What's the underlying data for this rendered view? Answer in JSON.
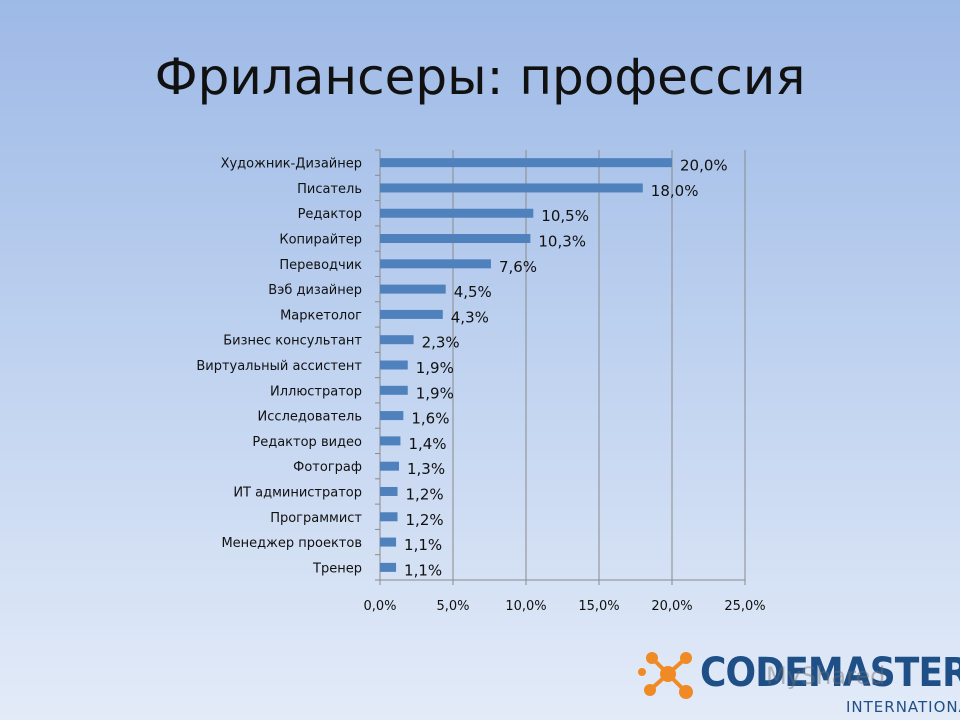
{
  "title": "Фрилансеры: профессия",
  "chart_data": {
    "type": "bar",
    "orientation": "horizontal",
    "categories": [
      "Художник-Дизайнер",
      "Писатель",
      "Редактор",
      "Копирайтер",
      "Переводчик",
      "Вэб дизайнер",
      "Маркетолог",
      "Бизнес консультант",
      "Виртуальный ассистент",
      "Иллюстратор",
      "Исследователь",
      "Редактор видео",
      "Фотограф",
      "ИТ администратор",
      "Программист",
      "Менеджер проектов",
      "Тренер"
    ],
    "values": [
      20.0,
      18.0,
      10.5,
      10.3,
      7.6,
      4.5,
      4.3,
      2.3,
      1.9,
      1.9,
      1.6,
      1.4,
      1.3,
      1.2,
      1.2,
      1.1,
      1.1
    ],
    "data_labels": [
      "20,0%",
      "18,0%",
      "10,5%",
      "10,3%",
      "7,6%",
      "4,5%",
      "4,3%",
      "2,3%",
      "1,9%",
      "1,9%",
      "1,6%",
      "1,4%",
      "1,3%",
      "1,2%",
      "1,2%",
      "1,1%",
      "1,1%"
    ],
    "x_ticks": [
      0,
      5,
      10,
      15,
      20,
      25
    ],
    "x_tick_labels": [
      "0,0%",
      "5,0%",
      "10,0%",
      "15,0%",
      "20,0%",
      "25,0%"
    ],
    "xlim": [
      0,
      25
    ],
    "grid": true,
    "bar_color": "#4f81bd"
  },
  "logo": {
    "name": "CODEMASTERS",
    "sub": "INTERNATIONAL",
    "watermark": "MyShared",
    "color": "#1f4f87",
    "accent": "#f08a24"
  }
}
